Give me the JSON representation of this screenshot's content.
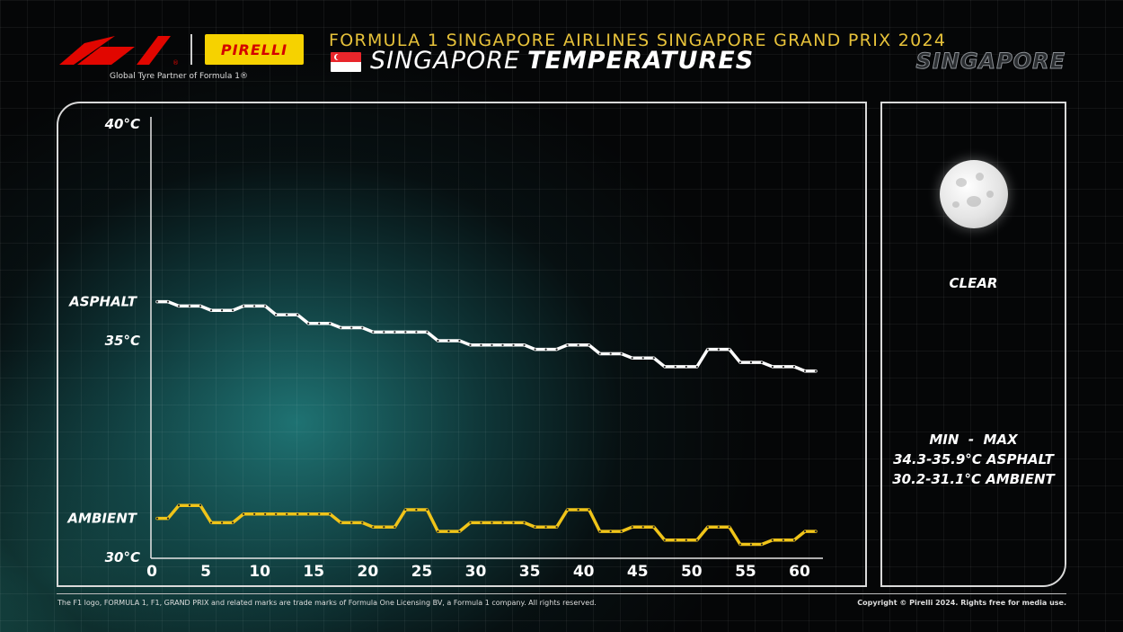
{
  "header": {
    "partner_text": "Global Tyre Partner of Formula 1®",
    "pirelli_logo_text": "PIRELLI",
    "gp_title": "FORMULA 1 SINGAPORE AIRLINES SINGAPORE GRAND PRIX 2024",
    "subtitle_light": "SINGAPORE",
    "subtitle_bold": "TEMPERATURES",
    "venue": "SINGAPORE"
  },
  "weather": {
    "condition": "CLEAR",
    "icon": "moon-icon",
    "minmax_header": "MIN  -  MAX",
    "asphalt_range": "34.3-35.9°C ASPHALT",
    "ambient_range": "30.2-31.1°C AMBIENT"
  },
  "footer": {
    "left": "The F1 logo, FORMULA 1, F1, GRAND PRIX and related marks are trade marks of Formula One Licensing BV, a Formula 1 company. All rights reserved.",
    "right": "Copyright © Pirelli 2024. Rights free for media use."
  },
  "colors": {
    "asphalt_line": "#ffffff",
    "ambient_line": "#f0c419",
    "title_gold": "#e7c23a",
    "f1_red": "#e10600",
    "pirelli_yellow": "#f6d200"
  },
  "chart_data": {
    "type": "line",
    "xlim": [
      0,
      61
    ],
    "ylim": [
      30,
      40
    ],
    "y_ticks": [
      {
        "value": 40,
        "label": "40°C"
      },
      {
        "value": 35,
        "label": "35°C"
      },
      {
        "value": 30,
        "label": "30°C"
      }
    ],
    "x_ticks": [
      0,
      5,
      10,
      15,
      20,
      25,
      30,
      35,
      40,
      45,
      50,
      55,
      60
    ],
    "series": [
      {
        "name": "ASPHALT",
        "x": [
          0,
          1,
          2,
          3,
          4,
          5,
          6,
          7,
          8,
          9,
          10,
          11,
          12,
          13,
          14,
          15,
          16,
          17,
          18,
          19,
          20,
          21,
          22,
          23,
          24,
          25,
          26,
          27,
          28,
          29,
          30,
          31,
          32,
          33,
          34,
          35,
          36,
          37,
          38,
          39,
          40,
          41,
          42,
          43,
          44,
          45,
          46,
          47,
          48,
          49,
          50,
          51,
          52,
          53,
          54,
          55,
          56,
          57,
          58,
          59,
          60,
          61
        ],
        "values": [
          35.9,
          35.9,
          35.8,
          35.8,
          35.8,
          35.7,
          35.7,
          35.7,
          35.8,
          35.8,
          35.8,
          35.6,
          35.6,
          35.6,
          35.4,
          35.4,
          35.4,
          35.3,
          35.3,
          35.3,
          35.2,
          35.2,
          35.2,
          35.2,
          35.2,
          35.2,
          35.0,
          35.0,
          35.0,
          34.9,
          34.9,
          34.9,
          34.9,
          34.9,
          34.9,
          34.8,
          34.8,
          34.8,
          34.9,
          34.9,
          34.9,
          34.7,
          34.7,
          34.7,
          34.6,
          34.6,
          34.6,
          34.4,
          34.4,
          34.4,
          34.4,
          34.8,
          34.8,
          34.8,
          34.5,
          34.5,
          34.5,
          34.4,
          34.4,
          34.4,
          34.3,
          34.3
        ]
      },
      {
        "name": "AMBIENT",
        "x": [
          0,
          1,
          2,
          3,
          4,
          5,
          6,
          7,
          8,
          9,
          10,
          11,
          12,
          13,
          14,
          15,
          16,
          17,
          18,
          19,
          20,
          21,
          22,
          23,
          24,
          25,
          26,
          27,
          28,
          29,
          30,
          31,
          32,
          33,
          34,
          35,
          36,
          37,
          38,
          39,
          40,
          41,
          42,
          43,
          44,
          45,
          46,
          47,
          48,
          49,
          50,
          51,
          52,
          53,
          54,
          55,
          56,
          57,
          58,
          59,
          60,
          61
        ],
        "values": [
          30.9,
          30.9,
          31.2,
          31.2,
          31.2,
          30.8,
          30.8,
          30.8,
          31.0,
          31.0,
          31.0,
          31.0,
          31.0,
          31.0,
          31.0,
          31.0,
          31.0,
          30.8,
          30.8,
          30.8,
          30.7,
          30.7,
          30.7,
          31.1,
          31.1,
          31.1,
          30.6,
          30.6,
          30.6,
          30.8,
          30.8,
          30.8,
          30.8,
          30.8,
          30.8,
          30.7,
          30.7,
          30.7,
          31.1,
          31.1,
          31.1,
          30.6,
          30.6,
          30.6,
          30.7,
          30.7,
          30.7,
          30.4,
          30.4,
          30.4,
          30.4,
          30.7,
          30.7,
          30.7,
          30.3,
          30.3,
          30.3,
          30.4,
          30.4,
          30.4,
          30.6,
          30.6
        ]
      }
    ]
  }
}
